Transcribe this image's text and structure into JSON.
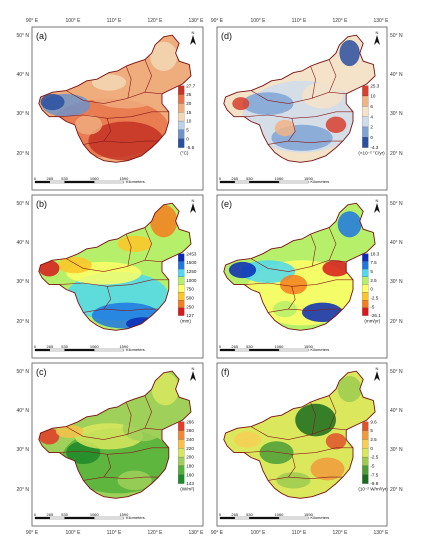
{
  "top_axis": [
    "90° E",
    "100° E",
    "110° E",
    "120° E",
    "130° E"
  ],
  "bottom_axis": [
    "90° E",
    "100° E",
    "110° E",
    "120° E",
    "130° E"
  ],
  "lat_labels": [
    "50° N",
    "40° N",
    "30° N",
    "20° N"
  ],
  "north_symbol": "N",
  "scale_bar": {
    "ticks": [
      "0",
      "265",
      "530",
      "1060",
      "1590"
    ],
    "unit": "Kilometers"
  },
  "colors": {
    "a": [
      "#2a4fa0",
      "#6f93c8",
      "#bcd2e8",
      "#f2d7b6",
      "#efac7c",
      "#e8734a",
      "#c43325"
    ],
    "b": [
      "#d7191c",
      "#f37e1e",
      "#fdc527",
      "#ffff66",
      "#b6f06a",
      "#4fd8f0",
      "#1f78e0",
      "#0b2ab5"
    ],
    "c": [
      "#1d8a2a",
      "#52b13b",
      "#9fd05a",
      "#d8e75e",
      "#f6c24a",
      "#f08a36",
      "#e33a2a"
    ]
  },
  "panels": [
    {
      "id": "a",
      "label": "(a)",
      "unit": "(°C)",
      "legend": [
        "27.7",
        "25",
        "20",
        "15",
        "10",
        "5",
        "0",
        "-5.6"
      ],
      "colors": [
        "#2a4fa0",
        "#6f93c8",
        "#bcd2e8",
        "#f2d7b6",
        "#efac7c",
        "#e8734a",
        "#c43325"
      ]
    },
    {
      "id": "d",
      "label": "(d)",
      "unit": "(×10⁻² °C/yr)",
      "legend": [
        "25.3",
        "10",
        "6",
        "4",
        "2",
        "0",
        "-4.3"
      ],
      "colors": [
        "#2a4fa0",
        "#7fa4d4",
        "#cfdcec",
        "#f4e3c8",
        "#f1b486",
        "#d7402e"
      ]
    },
    {
      "id": "b",
      "label": "(b)",
      "unit": "(mm)",
      "legend": [
        "2453",
        "1500",
        "1250",
        "1000",
        "750",
        "500",
        "250",
        "127"
      ],
      "colors": [
        "#d7191c",
        "#f37e1e",
        "#fdc527",
        "#ffff66",
        "#b6f06a",
        "#4fd8f0",
        "#1f78e0",
        "#0b2ab5"
      ]
    },
    {
      "id": "e",
      "label": "(e)",
      "unit": "(mm/yr)",
      "legend": [
        "18.3",
        "7.5",
        "5",
        "2.5",
        "0",
        "-2.5",
        "-5",
        "-26.1"
      ],
      "colors": [
        "#d7191c",
        "#f37e1e",
        "#fdc527",
        "#ffff66",
        "#b6f06a",
        "#4fd8f0",
        "#1f78e0",
        "#0b2ab5"
      ]
    },
    {
      "id": "c",
      "label": "(c)",
      "unit": "(W/m²)",
      "legend": [
        "266",
        "260",
        "240",
        "220",
        "200",
        "180",
        "160",
        "143"
      ],
      "colors": [
        "#1d8a2a",
        "#52b13b",
        "#9fd05a",
        "#d8e75e",
        "#f6c24a",
        "#f08a36",
        "#e33a2a"
      ]
    },
    {
      "id": "f",
      "label": "(f)",
      "unit": "(10⁻² W/m²/yr)",
      "legend": [
        "9.6",
        "5",
        "2.5",
        "0",
        "-2.5",
        "-5",
        "-7.5",
        "-9.8"
      ],
      "colors": [
        "#1a6b1f",
        "#4c9d37",
        "#9ccb4f",
        "#dbe75c",
        "#f7cf55",
        "#f19a3c",
        "#e0522b"
      ]
    }
  ]
}
